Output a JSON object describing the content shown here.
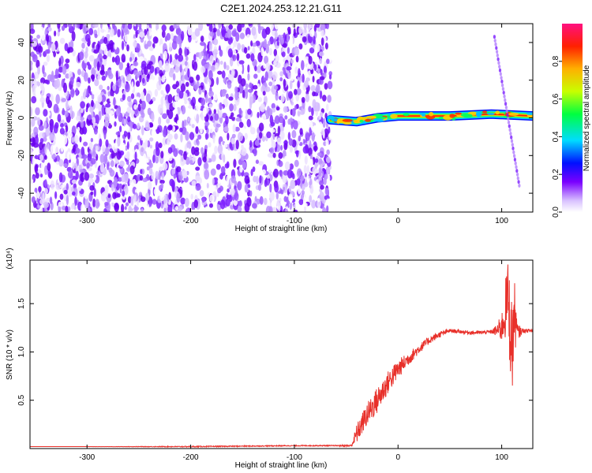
{
  "page_title": "C2E1.2024.253.12.21.G11",
  "chart_data": [
    {
      "type": "heatmap",
      "title": "C2E1.2024.253.12.21.G11",
      "xlabel": "Height of straight line (km)",
      "ylabel": "Frequency (Hz)",
      "xlim": [
        -355,
        130
      ],
      "ylim": [
        -50,
        50
      ],
      "x_ticks": [
        -300,
        -200,
        -100,
        0,
        100
      ],
      "y_ticks": [
        -40,
        -20,
        0,
        20,
        40
      ],
      "grid": false,
      "noise_region_x": [
        -355,
        -65
      ],
      "signal_band": [
        {
          "x": -65,
          "y": -1
        },
        {
          "x": -40,
          "y": -2
        },
        {
          "x": -20,
          "y": 0
        },
        {
          "x": 0,
          "y": 1
        },
        {
          "x": 50,
          "y": 1
        },
        {
          "x": 90,
          "y": 2
        },
        {
          "x": 130,
          "y": 1
        }
      ],
      "streak": {
        "x1": 93,
        "y1": 43,
        "x2": 117,
        "y2": -36
      },
      "colorbar": {
        "label": "Normalized spectral amplitude",
        "range": [
          0,
          1
        ],
        "ticks": [
          "0.0",
          "0.2",
          "0.4",
          "0.6",
          "0.8"
        ],
        "tick_values": [
          0,
          0.2,
          0.4,
          0.6,
          0.8
        ]
      }
    },
    {
      "type": "line",
      "xlabel": "Height of straight line (km)",
      "ylabel": "SNR (10 * v/v)",
      "y_multiplier_label": "(x10⁴)",
      "xlim": [
        -355,
        130
      ],
      "ylim": [
        0,
        1.95
      ],
      "x_ticks": [
        -300,
        -200,
        -100,
        0,
        100
      ],
      "y_ticks": [
        "0.5",
        "1.0",
        "1.5"
      ],
      "y_tick_values": [
        0.5,
        1.0,
        1.5
      ],
      "grid": false,
      "color": "#e8302a",
      "x": [
        -355,
        -300,
        -200,
        -100,
        -60,
        -45,
        -40,
        -30,
        -20,
        -10,
        0,
        10,
        20,
        30,
        40,
        50,
        60,
        70,
        80,
        90,
        95,
        100,
        103,
        106,
        108,
        110,
        112,
        115,
        120,
        130
      ],
      "y": [
        0.02,
        0.02,
        0.02,
        0.03,
        0.03,
        0.03,
        0.15,
        0.35,
        0.5,
        0.68,
        0.82,
        0.93,
        1.03,
        1.12,
        1.18,
        1.22,
        1.21,
        1.2,
        1.2,
        1.21,
        1.22,
        1.25,
        1.4,
        1.6,
        1.3,
        1.0,
        1.4,
        1.2,
        1.22,
        1.22
      ],
      "noise": [
        0,
        0,
        0.005,
        0.005,
        0.005,
        0.01,
        0.1,
        0.12,
        0.14,
        0.12,
        0.1,
        0.07,
        0.05,
        0.04,
        0.03,
        0.02,
        0.02,
        0.02,
        0.02,
        0.02,
        0.06,
        0.15,
        0.3,
        0.35,
        0.5,
        0.5,
        0.4,
        0.1,
        0.02,
        0.02
      ]
    }
  ]
}
